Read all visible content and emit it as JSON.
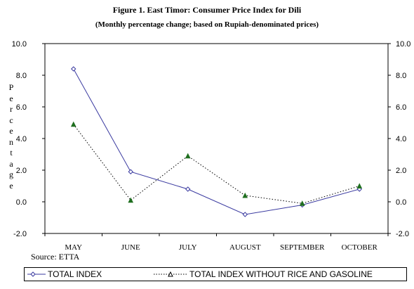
{
  "chart_data": {
    "type": "line",
    "title": "Figure 1. East Timor: Consumer Price Index for Dili",
    "subtitle": "(Monthly percentage change; based on Rupiah-denominated prices)",
    "ylabel": "Percentage",
    "source": "Source: ETTA",
    "categories": [
      "MAY",
      "JUNE",
      "JULY",
      "AUGUST",
      "SEPTEMBER",
      "OCTOBER"
    ],
    "y_ticks_left": [
      "10.0",
      "8.0",
      "6.0",
      "4.0",
      "2.0",
      "0.0",
      "-2.0"
    ],
    "y_ticks_right": [
      "10.0",
      "8.0",
      "6.0",
      "4.0",
      "2.0",
      "0.0",
      "-2.0"
    ],
    "ylim": [
      -2,
      10
    ],
    "series": [
      {
        "name": "TOTAL INDEX",
        "values": [
          8.4,
          1.9,
          0.8,
          -0.8,
          -0.2,
          0.8
        ],
        "marker": "diamond",
        "line": "solid",
        "color": "#3a3aa0"
      },
      {
        "name": "TOTAL INDEX WITHOUT RICE AND GASOLINE",
        "values": [
          4.9,
          0.1,
          2.9,
          0.4,
          -0.1,
          1.0
        ],
        "marker": "triangle",
        "line": "dotted",
        "color": "#1f6f1f"
      }
    ],
    "grid": false,
    "legend_position": "bottom"
  }
}
